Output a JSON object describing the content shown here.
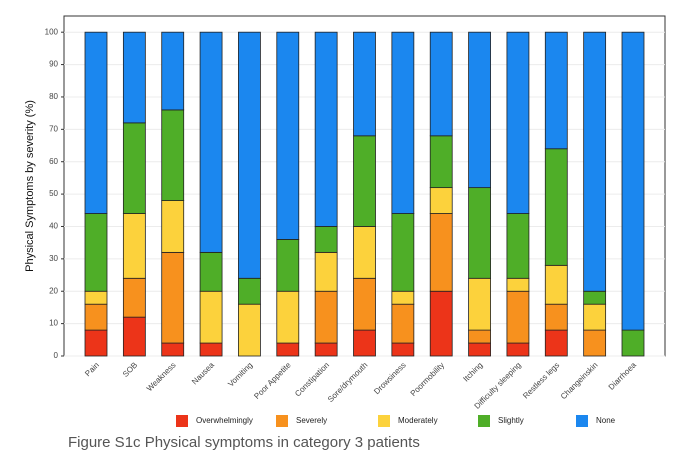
{
  "chart_data": {
    "type": "stacked_bar",
    "categories": [
      "Pain",
      "SOB",
      "Weakness",
      "Nausea",
      "Vomiting",
      "Poor Appetite",
      "Constipation",
      "Sore/drymouth",
      "Drowsiness",
      "Poormobility",
      "Itching",
      "Difficulty sleeping",
      "Restless legs",
      "Changeinskin",
      "Diarrhoea"
    ],
    "series": [
      {
        "name": "Overwhelmingly",
        "color": "#ec3419",
        "values": [
          8,
          12,
          4,
          4,
          0,
          4,
          4,
          8,
          4,
          20,
          4,
          4,
          8,
          0,
          0
        ]
      },
      {
        "name": "Severely",
        "color": "#f7911e",
        "values": [
          8,
          12,
          28,
          0,
          0,
          0,
          16,
          16,
          12,
          24,
          4,
          16,
          8,
          8,
          0
        ]
      },
      {
        "name": "Moderately",
        "color": "#fcd23c",
        "values": [
          4,
          20,
          16,
          16,
          16,
          16,
          12,
          16,
          4,
          8,
          16,
          4,
          12,
          8,
          0
        ]
      },
      {
        "name": "Slightly",
        "color": "#4fae28",
        "values": [
          24,
          28,
          28,
          12,
          8,
          16,
          8,
          28,
          24,
          16,
          28,
          20,
          36,
          4,
          8
        ]
      },
      {
        "name": "None",
        "color": "#1b87ef",
        "values": [
          56,
          28,
          24,
          68,
          76,
          64,
          60,
          32,
          56,
          32,
          48,
          56,
          36,
          80,
          92
        ]
      }
    ],
    "y_label": "Physical Symptoms by severity (%)",
    "ylim": [
      0,
      105
    ],
    "yticks": [
      0,
      10,
      20,
      30,
      40,
      50,
      60,
      70,
      80,
      90,
      100
    ],
    "grid": true,
    "legend": "bottom"
  },
  "caption": "Figure S1c Physical symptoms in category 3 patients"
}
